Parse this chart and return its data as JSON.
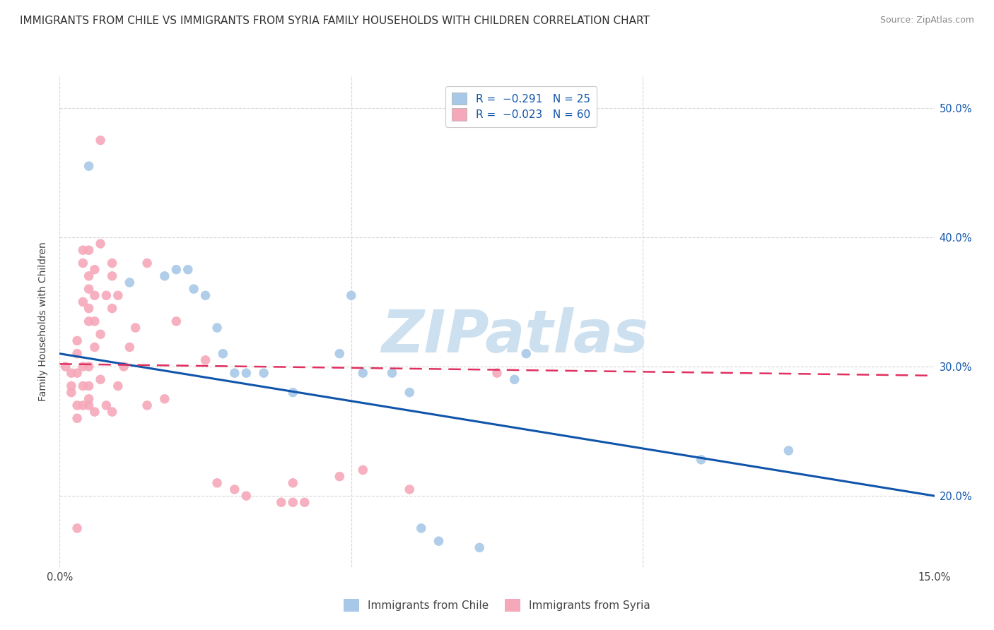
{
  "title": "IMMIGRANTS FROM CHILE VS IMMIGRANTS FROM SYRIA FAMILY HOUSEHOLDS WITH CHILDREN CORRELATION CHART",
  "source": "Source: ZipAtlas.com",
  "ylabel": "Family Households with Children",
  "xlim": [
    0.0,
    0.15
  ],
  "ylim": [
    0.145,
    0.525
  ],
  "yticks": [
    0.2,
    0.3,
    0.4,
    0.5
  ],
  "ytick_labels": [
    "20.0%",
    "30.0%",
    "40.0%",
    "50.0%"
  ],
  "xticks": [
    0.0,
    0.05,
    0.1,
    0.15
  ],
  "xtick_labels": [
    "0.0%",
    "",
    "",
    "15.0%"
  ],
  "watermark": "ZIPatlas",
  "chile_color": "#a8c8e8",
  "syria_color": "#f5a8ba",
  "chile_line_color": "#1155aa",
  "syria_line_color": "#e03060",
  "chile_scatter": [
    [
      0.005,
      0.455
    ],
    [
      0.012,
      0.365
    ],
    [
      0.018,
      0.37
    ],
    [
      0.02,
      0.375
    ],
    [
      0.022,
      0.375
    ],
    [
      0.023,
      0.36
    ],
    [
      0.025,
      0.355
    ],
    [
      0.027,
      0.33
    ],
    [
      0.028,
      0.31
    ],
    [
      0.03,
      0.295
    ],
    [
      0.032,
      0.295
    ],
    [
      0.035,
      0.295
    ],
    [
      0.04,
      0.28
    ],
    [
      0.048,
      0.31
    ],
    [
      0.05,
      0.355
    ],
    [
      0.052,
      0.295
    ],
    [
      0.057,
      0.295
    ],
    [
      0.06,
      0.28
    ],
    [
      0.062,
      0.175
    ],
    [
      0.065,
      0.165
    ],
    [
      0.072,
      0.16
    ],
    [
      0.078,
      0.29
    ],
    [
      0.08,
      0.31
    ],
    [
      0.11,
      0.228
    ],
    [
      0.125,
      0.235
    ]
  ],
  "syria_scatter": [
    [
      0.001,
      0.3
    ],
    [
      0.002,
      0.295
    ],
    [
      0.002,
      0.285
    ],
    [
      0.002,
      0.28
    ],
    [
      0.003,
      0.32
    ],
    [
      0.003,
      0.31
    ],
    [
      0.003,
      0.295
    ],
    [
      0.003,
      0.27
    ],
    [
      0.003,
      0.26
    ],
    [
      0.003,
      0.175
    ],
    [
      0.004,
      0.39
    ],
    [
      0.004,
      0.38
    ],
    [
      0.004,
      0.35
    ],
    [
      0.004,
      0.3
    ],
    [
      0.004,
      0.285
    ],
    [
      0.004,
      0.27
    ],
    [
      0.005,
      0.39
    ],
    [
      0.005,
      0.37
    ],
    [
      0.005,
      0.36
    ],
    [
      0.005,
      0.345
    ],
    [
      0.005,
      0.335
    ],
    [
      0.005,
      0.3
    ],
    [
      0.005,
      0.285
    ],
    [
      0.005,
      0.275
    ],
    [
      0.005,
      0.27
    ],
    [
      0.006,
      0.375
    ],
    [
      0.006,
      0.355
    ],
    [
      0.006,
      0.335
    ],
    [
      0.006,
      0.315
    ],
    [
      0.006,
      0.265
    ],
    [
      0.007,
      0.475
    ],
    [
      0.007,
      0.395
    ],
    [
      0.007,
      0.325
    ],
    [
      0.007,
      0.29
    ],
    [
      0.008,
      0.355
    ],
    [
      0.008,
      0.27
    ],
    [
      0.009,
      0.38
    ],
    [
      0.009,
      0.37
    ],
    [
      0.009,
      0.345
    ],
    [
      0.009,
      0.265
    ],
    [
      0.01,
      0.355
    ],
    [
      0.01,
      0.285
    ],
    [
      0.011,
      0.3
    ],
    [
      0.012,
      0.315
    ],
    [
      0.013,
      0.33
    ],
    [
      0.015,
      0.38
    ],
    [
      0.015,
      0.27
    ],
    [
      0.018,
      0.275
    ],
    [
      0.02,
      0.335
    ],
    [
      0.025,
      0.305
    ],
    [
      0.027,
      0.21
    ],
    [
      0.03,
      0.205
    ],
    [
      0.032,
      0.2
    ],
    [
      0.038,
      0.195
    ],
    [
      0.04,
      0.195
    ],
    [
      0.04,
      0.21
    ],
    [
      0.042,
      0.195
    ],
    [
      0.048,
      0.215
    ],
    [
      0.052,
      0.22
    ],
    [
      0.06,
      0.205
    ],
    [
      0.075,
      0.295
    ]
  ],
  "chile_line": [
    [
      0.0,
      0.31
    ],
    [
      0.15,
      0.2
    ]
  ],
  "syria_line": [
    [
      0.0,
      0.302
    ],
    [
      0.15,
      0.293
    ]
  ],
  "title_fontsize": 11,
  "axis_label_fontsize": 10,
  "tick_fontsize": 10.5,
  "legend_fontsize": 11,
  "source_fontsize": 9,
  "background_color": "#ffffff",
  "grid_color": "#cccccc",
  "watermark_color": "#cce0f0",
  "watermark_fontsize": 60
}
